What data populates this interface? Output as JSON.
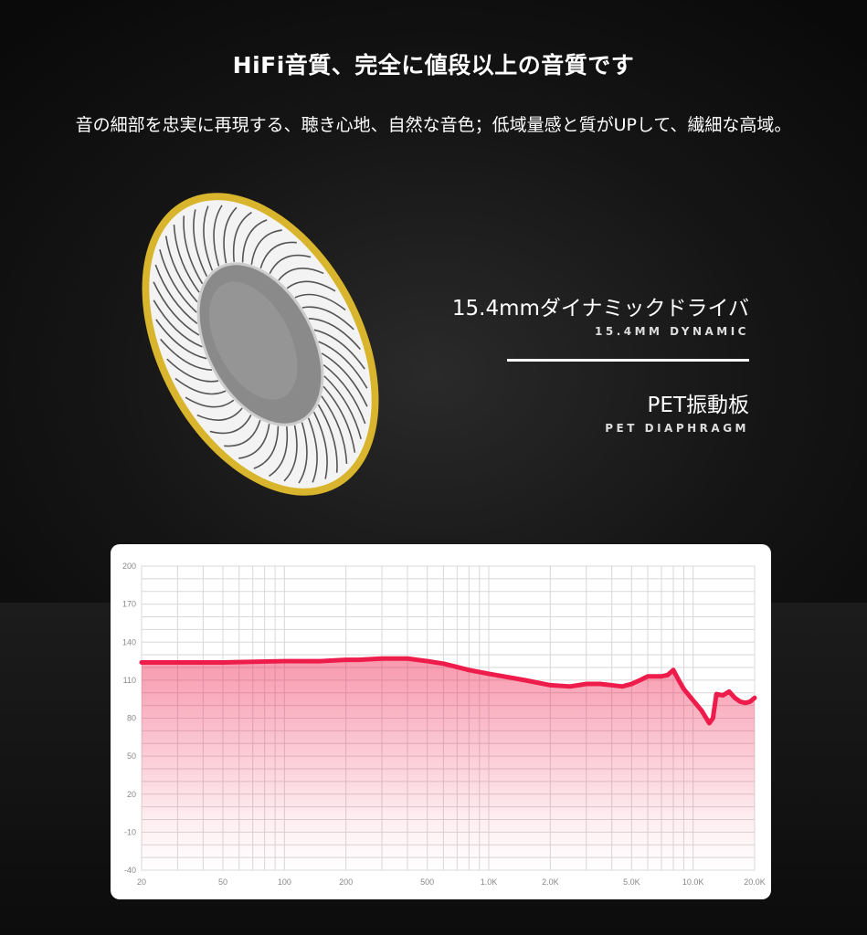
{
  "header": {
    "title": "HiFi音質、完全に値段以上の音質です",
    "subtitle": "音の細部を忠実に再現する、聴き心地、自然な音色；低域量感と質がUPして、繊細な高域。"
  },
  "specs": [
    {
      "jp": "15.4mmダイナミックドライバ",
      "en": "15.4MM DYNAMIC"
    },
    {
      "jp": "PET振動板",
      "en": "PET DIAPHRAGM"
    }
  ],
  "colors": {
    "curve": "#ee1c4b",
    "grid": "#d8d8d8",
    "ring": "#e0c43a"
  },
  "chart_data": {
    "type": "area",
    "xscale": "log",
    "xlim": [
      20,
      20000
    ],
    "ylim": [
      -40,
      200
    ],
    "grid": true,
    "x_ticks": [
      {
        "v": 20,
        "label": "20"
      },
      {
        "v": 50,
        "label": "50"
      },
      {
        "v": 100,
        "label": "100"
      },
      {
        "v": 200,
        "label": "200"
      },
      {
        "v": 500,
        "label": "500"
      },
      {
        "v": 1000,
        "label": "1.0K"
      },
      {
        "v": 2000,
        "label": "2.0K"
      },
      {
        "v": 5000,
        "label": "5.0K"
      },
      {
        "v": 10000,
        "label": "10.0K"
      },
      {
        "v": 20000,
        "label": "20.0K"
      }
    ],
    "y_ticks": [
      200,
      170,
      140,
      110,
      80,
      50,
      20,
      -10,
      -40
    ],
    "x": [
      20,
      50,
      100,
      150,
      200,
      230,
      300,
      400,
      500,
      600,
      800,
      1000,
      1500,
      2000,
      2500,
      3000,
      3500,
      4000,
      4500,
      5000,
      5500,
      6000,
      7000,
      7500,
      8000,
      8500,
      9000,
      10000,
      11000,
      12000,
      12500,
      13000,
      14000,
      15000,
      16000,
      17000,
      18000,
      19000,
      20000
    ],
    "y": [
      124,
      124,
      125,
      125,
      126,
      126,
      127,
      127,
      125,
      123,
      118,
      115,
      110,
      106,
      105,
      107,
      107,
      106,
      105,
      107,
      110,
      113,
      113,
      114,
      118,
      110,
      103,
      94,
      86,
      76,
      80,
      99,
      98,
      101,
      96,
      93,
      92,
      93,
      96
    ]
  }
}
